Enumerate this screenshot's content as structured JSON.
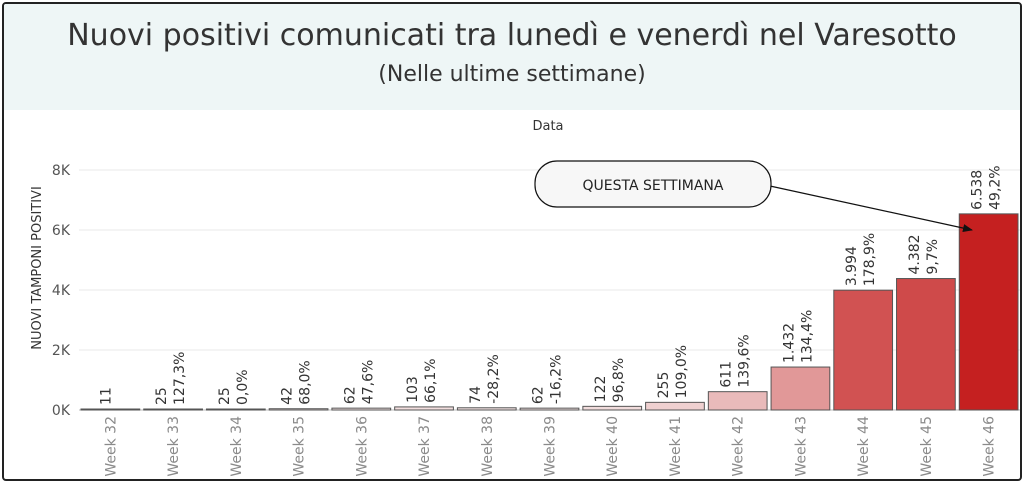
{
  "header": {
    "title": "Nuovi positivi comunicati tra lunedì e venerdì nel Varesotto",
    "subtitle": "(Nelle ultime settimane)"
  },
  "annotation": {
    "text": "QUESTA SETTIMANA"
  },
  "colors": {
    "header_bg": "#eef6f6",
    "bar_low": "#f7f4f4",
    "bar_high": "#c52020",
    "bar_stroke": "#555555",
    "grid": "#e9e9e9"
  },
  "chart_data": {
    "type": "bar",
    "title": "Nuovi positivi comunicati tra lunedì e venerdì nel Varesotto",
    "subtitle": "(Nelle ultime settimane)",
    "column_header": "Data",
    "ylabel": "NUOVI TAMPONI POSITIVI",
    "ylim": [
      0,
      8000
    ],
    "yticks": [
      0,
      2000,
      4000,
      6000,
      8000
    ],
    "ytick_labels": [
      "0K",
      "2K",
      "4K",
      "6K",
      "8K"
    ],
    "grid": true,
    "categories": [
      "Week 32",
      "Week 33",
      "Week 34",
      "Week 35",
      "Week 36",
      "Week 37",
      "Week 38",
      "Week 39",
      "Week 40",
      "Week 41",
      "Week 42",
      "Week 43",
      "Week 44",
      "Week 45",
      "Week 46"
    ],
    "values": [
      11,
      25,
      25,
      42,
      62,
      103,
      74,
      62,
      122,
      255,
      611,
      1432,
      3994,
      4382,
      6538
    ],
    "value_labels": [
      "11",
      "25",
      "25",
      "42",
      "62",
      "103",
      "74",
      "62",
      "122",
      "255",
      "611",
      "1.432",
      "3.994",
      "4.382",
      "6.538"
    ],
    "pct_change_labels": [
      "",
      "127,3%",
      "0,0%",
      "68,0%",
      "47,6%",
      "66,1%",
      "-28,2%",
      "-16,2%",
      "96,8%",
      "109,0%",
      "139,6%",
      "134,4%",
      "178,9%",
      "9,7%",
      "49,2%"
    ]
  }
}
